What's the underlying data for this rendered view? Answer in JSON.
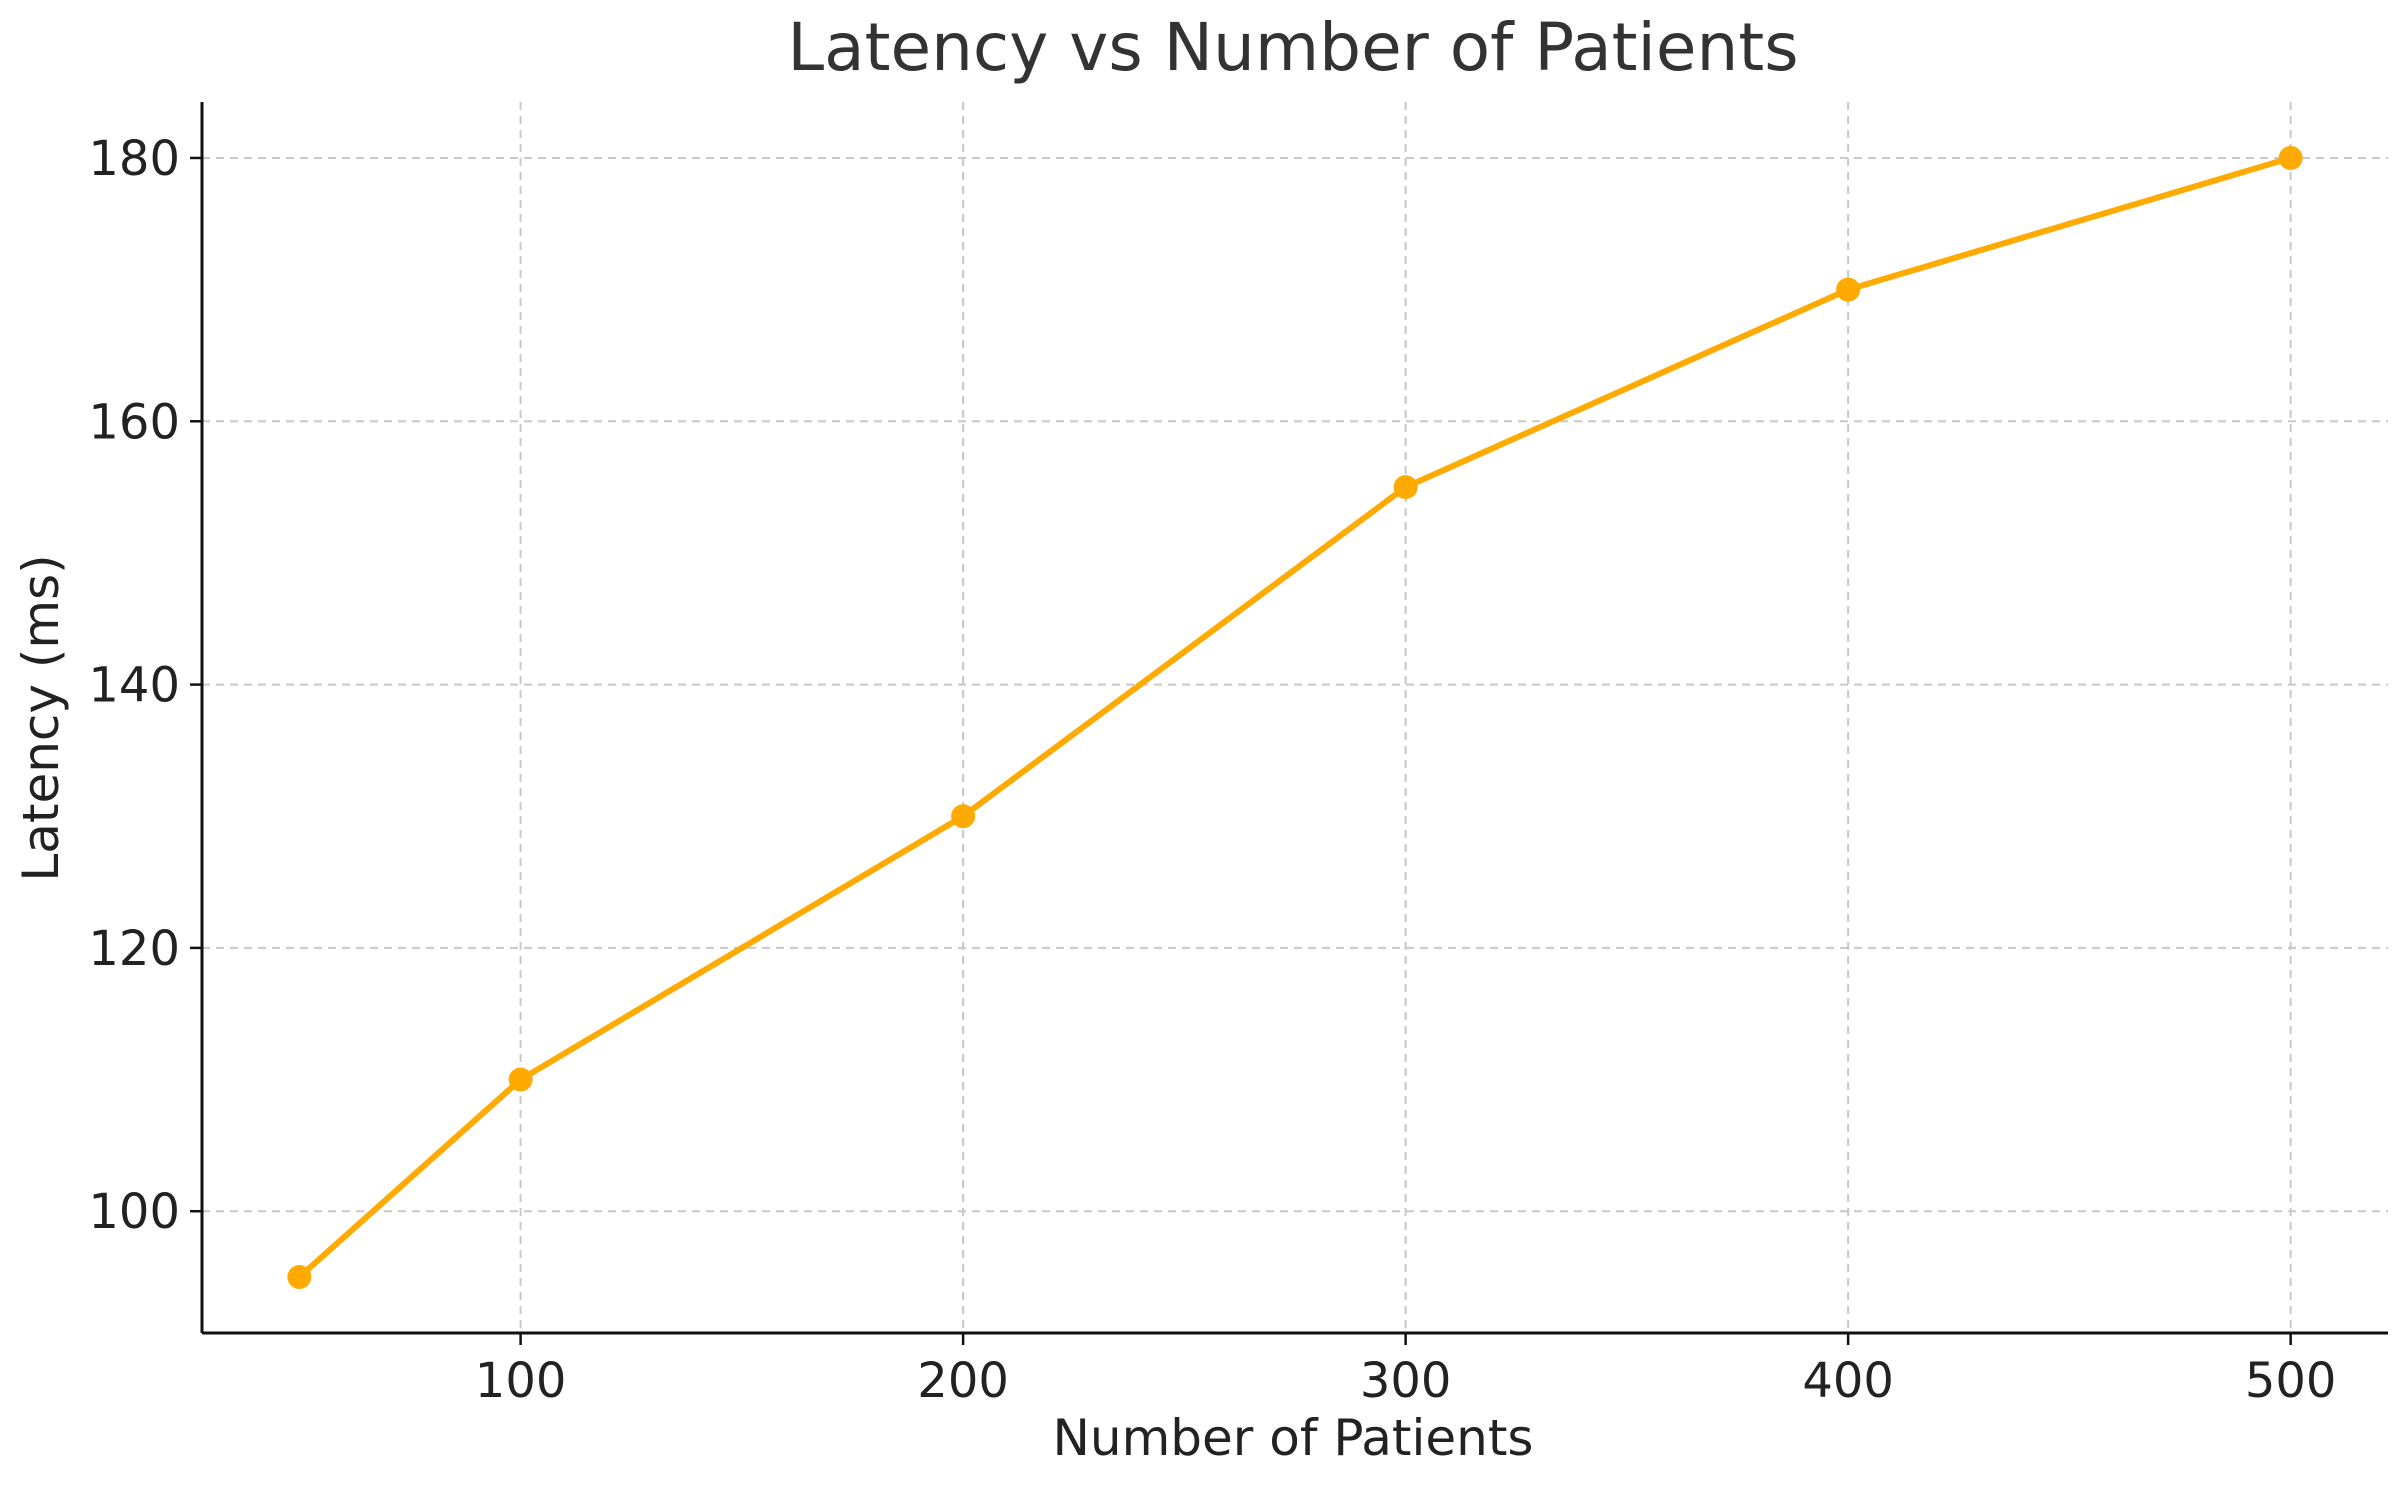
{
  "chart_data": {
    "type": "line",
    "title": "Latency vs Number of Patients",
    "xlabel": "Number of Patients",
    "ylabel": "Latency (ms)",
    "x": [
      50,
      100,
      200,
      300,
      400,
      500
    ],
    "series": [
      {
        "values": [
          95,
          110,
          130,
          155,
          170,
          180
        ],
        "color": "#FFAA00"
      }
    ],
    "xlim": [
      28,
      522
    ],
    "ylim": [
      90.75,
      184.25
    ],
    "xticks": [
      100,
      200,
      300,
      400,
      500
    ],
    "yticks": [
      100,
      120,
      140,
      160,
      180
    ],
    "grid": true,
    "marker": "circle"
  }
}
